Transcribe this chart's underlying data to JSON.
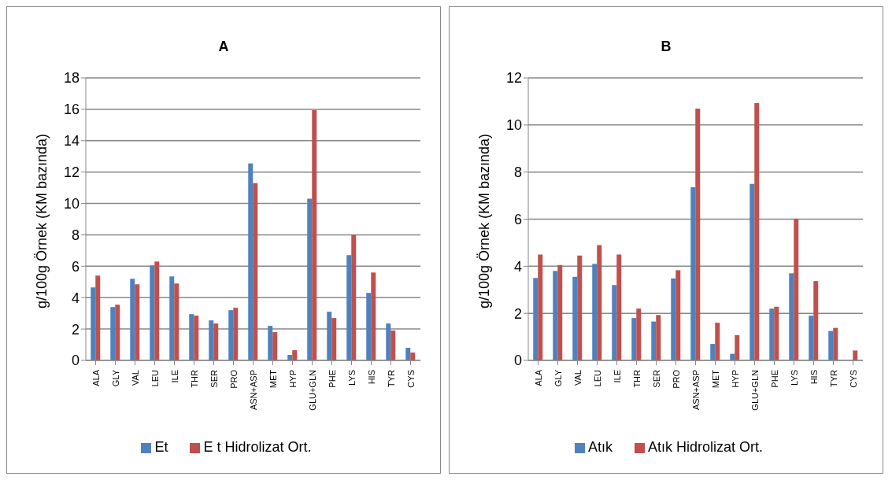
{
  "chart_data": [
    {
      "type": "bar",
      "title": "A",
      "ylabel": "g/100g Örnek (KM bazında)",
      "categories": [
        "ALA",
        "GLY",
        "VAL",
        "LEU",
        "ILE",
        "THR",
        "SER",
        "PRO",
        "ASN+ASP",
        "MET",
        "HYP",
        "GLU+GLN",
        "PHE",
        "LYS",
        "HIS",
        "TYR",
        "CYS"
      ],
      "series": [
        {
          "name": "Et",
          "color": "#4f81bd",
          "values": [
            4.65,
            3.4,
            5.2,
            6.05,
            5.35,
            2.95,
            2.55,
            3.2,
            12.55,
            2.2,
            0.35,
            10.3,
            3.1,
            6.7,
            4.3,
            2.35,
            0.8
          ]
        },
        {
          "name": "E t Hidrolizat Ort.",
          "color": "#c0504d",
          "values": [
            5.4,
            3.55,
            4.85,
            6.3,
            4.9,
            2.85,
            2.35,
            3.35,
            11.3,
            1.8,
            0.65,
            15.95,
            2.7,
            8.0,
            5.6,
            1.9,
            0.5
          ]
        }
      ],
      "ylim": [
        0,
        18
      ],
      "yticks": [
        0,
        2,
        4,
        6,
        8,
        10,
        12,
        14,
        16,
        18
      ],
      "grid": "y",
      "legend": "bottom"
    },
    {
      "type": "bar",
      "title": "B",
      "ylabel": "g/100g Örnek (KM bazında)",
      "categories": [
        "ALA",
        "GLY",
        "VAL",
        "LEU",
        "ILE",
        "THR",
        "SER",
        "PRO",
        "ASN+ASP",
        "MET",
        "HYP",
        "GLU+GLN",
        "PHE",
        "LYS",
        "HIS",
        "TYR",
        "CYS"
      ],
      "series": [
        {
          "name": "Atık",
          "color": "#4f81bd",
          "values": [
            3.5,
            3.8,
            3.55,
            4.1,
            3.2,
            1.8,
            1.65,
            3.48,
            7.35,
            0.7,
            0.28,
            7.5,
            2.2,
            3.7,
            1.9,
            1.25,
            null
          ]
        },
        {
          "name": "Atık Hidrolizat Ort.",
          "color": "#c0504d",
          "values": [
            4.5,
            4.05,
            4.45,
            4.9,
            4.5,
            2.2,
            1.93,
            3.83,
            10.7,
            1.6,
            1.07,
            10.93,
            2.28,
            6.02,
            3.37,
            1.38,
            0.42
          ]
        }
      ],
      "ylim": [
        0,
        12
      ],
      "yticks": [
        0,
        2,
        4,
        6,
        8,
        10,
        12
      ],
      "grid": "y",
      "legend": "bottom"
    }
  ]
}
